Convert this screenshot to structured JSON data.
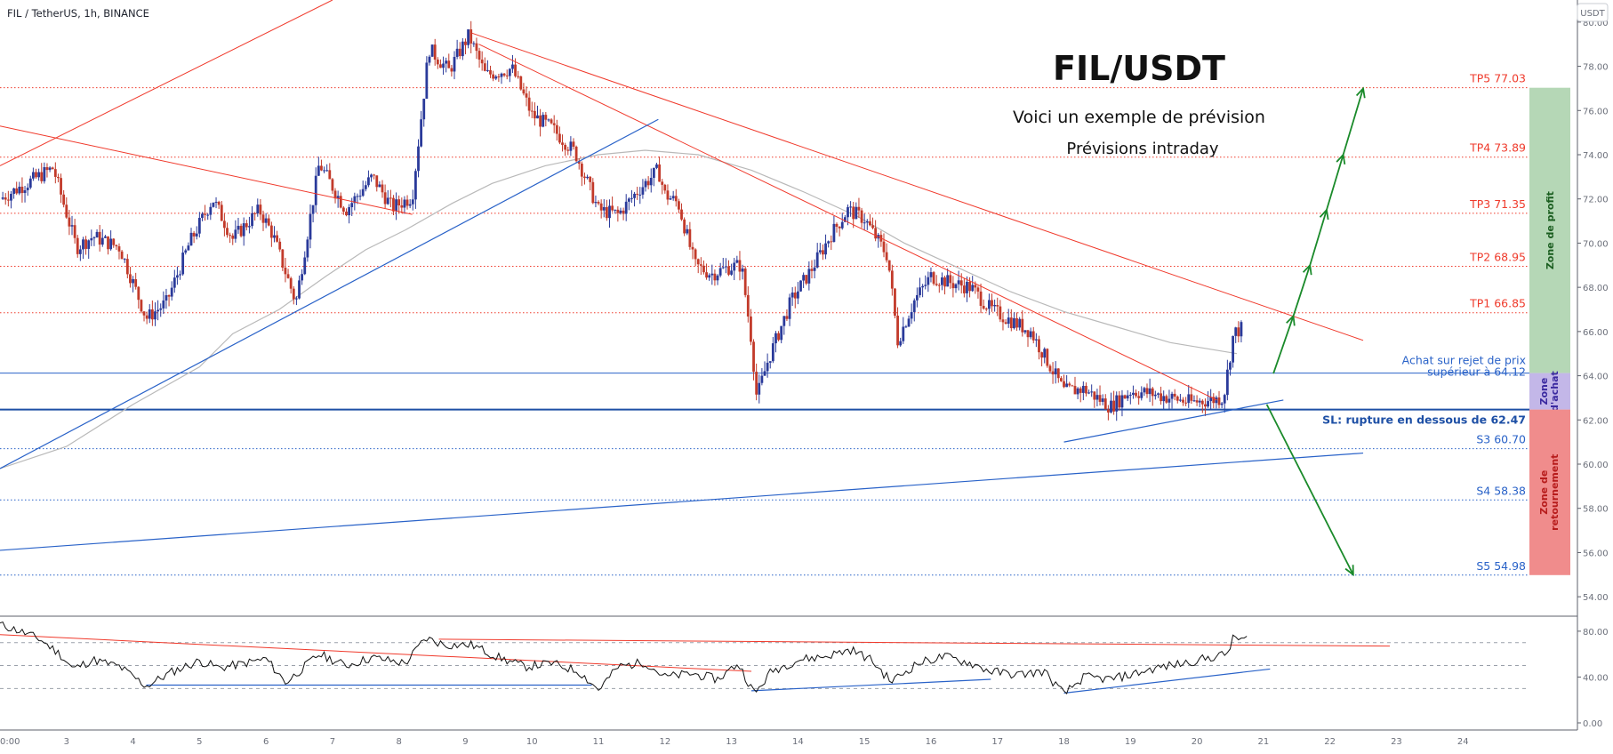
{
  "chart_data": {
    "type": "candlestick",
    "symbol_label": "FIL / TetherUS, 1h, BINANCE",
    "title": "FIL/USDT",
    "subtitle1": "Voici un exemple de prévision",
    "subtitle2": "Prévisions intraday",
    "currency_badge": "USDT",
    "ylim": [
      53.0,
      81.0
    ],
    "y_ticks": [
      "80.00",
      "78.00",
      "76.00",
      "74.00",
      "72.00",
      "70.00",
      "68.00",
      "66.00",
      "64.00",
      "62.00",
      "60.00",
      "58.00",
      "56.00",
      "54.00"
    ],
    "y_tick_values": [
      80,
      78,
      76,
      74,
      72,
      70,
      68,
      66,
      64,
      62,
      60,
      58,
      56,
      54
    ],
    "x_ticks": [
      "0:00",
      "3",
      "4",
      "5",
      "6",
      "7",
      "8",
      "9",
      "10",
      "11",
      "12",
      "13",
      "14",
      "15",
      "16",
      "17",
      "18",
      "19",
      "20",
      "21",
      "22",
      "23",
      "24"
    ],
    "x_tick_values": [
      2,
      3,
      4,
      5,
      6,
      7,
      8,
      9,
      10,
      11,
      12,
      13,
      14,
      15,
      16,
      17,
      18,
      19,
      20,
      21,
      22,
      23,
      24
    ],
    "xlim": [
      2.0,
      25.0
    ],
    "colors": {
      "up": "#2a3a9a",
      "down": "#c23a2a",
      "red_line": "#f0392b",
      "blue_line": "#2962c8",
      "ma": "#b9b9b9",
      "green_arrow": "#1a8a2a"
    },
    "close_path": [
      [
        2.0,
        72.0
      ],
      [
        2.8,
        73.4
      ],
      [
        3.15,
        69.8
      ],
      [
        3.4,
        70.3
      ],
      [
        3.8,
        69.8
      ],
      [
        4.2,
        66.6
      ],
      [
        4.5,
        67.3
      ],
      [
        4.85,
        70.0
      ],
      [
        5.2,
        72.0
      ],
      [
        5.5,
        70.2
      ],
      [
        5.9,
        71.5
      ],
      [
        6.1,
        70.4
      ],
      [
        6.45,
        67.3
      ],
      [
        6.8,
        73.6
      ],
      [
        7.2,
        71.5
      ],
      [
        7.6,
        73.0
      ],
      [
        7.9,
        71.6
      ],
      [
        8.2,
        72.1
      ],
      [
        8.45,
        78.8
      ],
      [
        8.75,
        77.8
      ],
      [
        9.05,
        79.4
      ],
      [
        9.3,
        77.6
      ],
      [
        9.7,
        77.9
      ],
      [
        10.0,
        75.8
      ],
      [
        10.3,
        75.2
      ],
      [
        10.65,
        74.1
      ],
      [
        11.0,
        71.5
      ],
      [
        11.3,
        71.3
      ],
      [
        11.6,
        72.4
      ],
      [
        11.9,
        73.3
      ],
      [
        12.0,
        72.2
      ],
      [
        12.2,
        71.8
      ],
      [
        12.45,
        69.0
      ],
      [
        12.7,
        68.6
      ],
      [
        12.95,
        68.9
      ],
      [
        13.15,
        69.0
      ],
      [
        13.3,
        65.6
      ],
      [
        13.38,
        63.0
      ],
      [
        13.55,
        64.7
      ],
      [
        13.9,
        67.4
      ],
      [
        14.2,
        68.8
      ],
      [
        14.5,
        70.4
      ],
      [
        14.75,
        71.5
      ],
      [
        15.0,
        71.1
      ],
      [
        15.35,
        69.4
      ],
      [
        15.5,
        65.6
      ],
      [
        15.75,
        67.4
      ],
      [
        16.0,
        68.5
      ],
      [
        16.3,
        68.2
      ],
      [
        16.6,
        68.0
      ],
      [
        16.9,
        67.0
      ],
      [
        17.2,
        66.5
      ],
      [
        17.5,
        66.0
      ],
      [
        17.8,
        64.4
      ],
      [
        18.0,
        63.3
      ],
      [
        18.3,
        63.4
      ],
      [
        18.7,
        62.6
      ],
      [
        19.0,
        63.3
      ],
      [
        19.3,
        63.2
      ],
      [
        19.6,
        63.0
      ],
      [
        19.9,
        62.8
      ],
      [
        20.2,
        62.9
      ],
      [
        20.4,
        63.0
      ],
      [
        20.55,
        65.9
      ],
      [
        20.7,
        66.2
      ]
    ],
    "ma_path": [
      [
        2.0,
        59.8
      ],
      [
        3.0,
        60.8
      ],
      [
        4.0,
        62.7
      ],
      [
        5.0,
        64.4
      ],
      [
        5.5,
        65.9
      ],
      [
        6.2,
        67.0
      ],
      [
        6.9,
        68.5
      ],
      [
        7.5,
        69.7
      ],
      [
        8.1,
        70.6
      ],
      [
        8.8,
        71.8
      ],
      [
        9.4,
        72.7
      ],
      [
        10.2,
        73.5
      ],
      [
        11.0,
        74.0
      ],
      [
        11.7,
        74.2
      ],
      [
        12.5,
        74.0
      ],
      [
        13.3,
        73.3
      ],
      [
        14.1,
        72.3
      ],
      [
        14.9,
        71.2
      ],
      [
        15.6,
        70.0
      ],
      [
        16.4,
        68.9
      ],
      [
        17.2,
        67.8
      ],
      [
        18.0,
        66.9
      ],
      [
        18.8,
        66.2
      ],
      [
        19.6,
        65.5
      ],
      [
        20.6,
        65.0
      ]
    ],
    "levels": [
      {
        "label": "TP5 77.03",
        "value": 77.03,
        "color": "#ef3b2c"
      },
      {
        "label": "TP4 73.89",
        "value": 73.89,
        "color": "#ef3b2c"
      },
      {
        "label": "TP3 71.35",
        "value": 71.35,
        "color": "#ef3b2c"
      },
      {
        "label": "TP2 68.95",
        "value": 68.95,
        "color": "#ef3b2c"
      },
      {
        "label": "TP1 66.85",
        "value": 66.85,
        "color": "#ef3b2c"
      },
      {
        "label": "S3 60.70",
        "value": 60.7,
        "color": "#2962c8"
      },
      {
        "label": "S4 58.38",
        "value": 58.38,
        "color": "#2962c8"
      },
      {
        "label": "S5 54.98",
        "value": 54.98,
        "color": "#2962c8"
      }
    ],
    "buy_level": {
      "value": 64.12,
      "label_line1": "Achat sur rejet de prix",
      "label_line2": "supérieur à 64.12"
    },
    "sl_level": {
      "value": 62.47,
      "label": "SL: rupture en dessous de 62.47"
    },
    "trendlines_red": [
      [
        [
          2.0,
          73.5
        ],
        [
          7.0,
          81.0
        ]
      ],
      [
        [
          2.0,
          75.3
        ],
        [
          8.2,
          71.3
        ]
      ],
      [
        [
          9.1,
          79.5
        ],
        [
          22.5,
          65.6
        ]
      ],
      [
        [
          9.2,
          79.0
        ],
        [
          20.3,
          62.9
        ]
      ]
    ],
    "trendlines_blue": [
      [
        [
          2.0,
          59.8
        ],
        [
          11.9,
          75.6
        ]
      ],
      [
        [
          2.0,
          56.1
        ],
        [
          22.5,
          60.5
        ]
      ],
      [
        [
          18.0,
          61.0
        ],
        [
          21.3,
          62.9
        ]
      ]
    ],
    "arrows_up": [
      [
        [
          21.15,
          64.1
        ],
        [
          21.45,
          66.7
        ]
      ],
      [
        [
          21.45,
          66.7
        ],
        [
          21.7,
          69.0
        ]
      ],
      [
        [
          21.7,
          69.0
        ],
        [
          21.95,
          71.5
        ]
      ],
      [
        [
          21.95,
          71.5
        ],
        [
          22.2,
          74.0
        ]
      ],
      [
        [
          22.2,
          74.0
        ],
        [
          22.5,
          77.0
        ]
      ]
    ],
    "arrow_down": [
      [
        21.05,
        62.7
      ],
      [
        22.35,
        55.0
      ]
    ],
    "zones": [
      {
        "label": "Zone de profit",
        "top": 77.03,
        "bottom": 64.12,
        "fill": "#b5d7b6"
      },
      {
        "label": "Zone d'achat",
        "top": 64.12,
        "bottom": 62.47,
        "fill": "#c3b7e8"
      },
      {
        "label": "Zone de retournement",
        "top": 62.47,
        "bottom": 54.98,
        "fill": "#f08c8c"
      }
    ],
    "rsi": {
      "ylim": [
        0,
        90
      ],
      "y_ticks": [
        "80.00",
        "40.00",
        "0.00"
      ],
      "y_tick_values": [
        80,
        40,
        0
      ],
      "guide_values": [
        70,
        50,
        30
      ],
      "path": [
        [
          2.0,
          86
        ],
        [
          2.3,
          80
        ],
        [
          2.6,
          73
        ],
        [
          2.9,
          60
        ],
        [
          3.1,
          47
        ],
        [
          3.4,
          55
        ],
        [
          3.8,
          49
        ],
        [
          4.2,
          32
        ],
        [
          4.6,
          45
        ],
        [
          5.0,
          54
        ],
        [
          5.3,
          48
        ],
        [
          5.6,
          51
        ],
        [
          6.0,
          56
        ],
        [
          6.3,
          35
        ],
        [
          6.8,
          60
        ],
        [
          7.2,
          50
        ],
        [
          7.6,
          57
        ],
        [
          8.1,
          52
        ],
        [
          8.4,
          74
        ],
        [
          8.7,
          68
        ],
        [
          9.1,
          68
        ],
        [
          9.5,
          57
        ],
        [
          9.9,
          49
        ],
        [
          10.3,
          52
        ],
        [
          10.7,
          45
        ],
        [
          11.0,
          29
        ],
        [
          11.3,
          49
        ],
        [
          11.7,
          53
        ],
        [
          12.0,
          40
        ],
        [
          12.4,
          43
        ],
        [
          12.8,
          38
        ],
        [
          13.1,
          52
        ],
        [
          13.35,
          25
        ],
        [
          13.6,
          45
        ],
        [
          14.0,
          55
        ],
        [
          14.4,
          58
        ],
        [
          14.8,
          64
        ],
        [
          15.1,
          55
        ],
        [
          15.4,
          36
        ],
        [
          15.8,
          52
        ],
        [
          16.2,
          58
        ],
        [
          16.6,
          52
        ],
        [
          16.9,
          45
        ],
        [
          17.3,
          42
        ],
        [
          17.7,
          45
        ],
        [
          18.0,
          25
        ],
        [
          18.3,
          40
        ],
        [
          18.7,
          38
        ],
        [
          19.0,
          42
        ],
        [
          19.4,
          48
        ],
        [
          19.8,
          52
        ],
        [
          20.2,
          57
        ],
        [
          20.45,
          60
        ],
        [
          20.55,
          74
        ],
        [
          20.75,
          73
        ]
      ],
      "trend_red": [
        [
          [
            2.0,
            77
          ],
          [
            13.3,
            45
          ]
        ],
        [
          [
            8.6,
            73
          ],
          [
            22.9,
            67
          ]
        ]
      ],
      "trend_blue": [
        [
          [
            4.2,
            33
          ],
          [
            10.9,
            33
          ]
        ],
        [
          [
            13.3,
            28
          ],
          [
            16.9,
            38
          ]
        ],
        [
          [
            18.0,
            26
          ],
          [
            21.1,
            47
          ]
        ]
      ]
    }
  }
}
